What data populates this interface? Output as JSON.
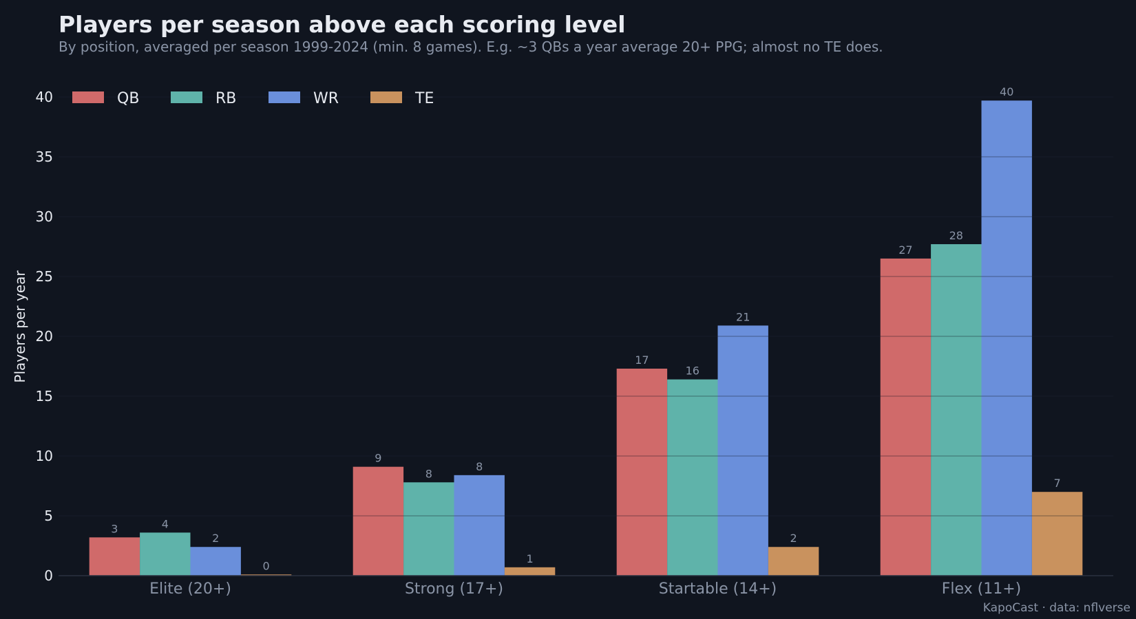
{
  "chart_data": {
    "type": "bar",
    "title": "Players per season above each scoring level",
    "subtitle": "By position, averaged per season 1999-2024 (min. 8 games). E.g. ~3 QBs a year average 20+ PPG; almost no TE does.",
    "xlabel": "",
    "ylabel": "Players per year",
    "ylim": [
      0,
      40
    ],
    "yticks": [
      "0",
      "5",
      "10",
      "15",
      "20",
      "25",
      "30",
      "35",
      "40"
    ],
    "grid": true,
    "legend_position": "top-left",
    "categories": [
      "Elite (20+)",
      "Strong (17+)",
      "Startable (14+)",
      "Flex (11+)"
    ],
    "series": [
      {
        "name": "QB",
        "color": "#d06a6a",
        "values": [
          3.2,
          9.1,
          17.3,
          26.5
        ],
        "labels": [
          "3",
          "9",
          "17",
          "27"
        ]
      },
      {
        "name": "RB",
        "color": "#5fb3aa",
        "values": [
          3.6,
          7.8,
          16.4,
          27.7
        ],
        "labels": [
          "4",
          "8",
          "16",
          "28"
        ]
      },
      {
        "name": "WR",
        "color": "#6a8fdb",
        "values": [
          2.4,
          8.4,
          20.9,
          39.7
        ],
        "labels": [
          "2",
          "8",
          "21",
          "40"
        ]
      },
      {
        "name": "TE",
        "color": "#c9925e",
        "values": [
          0.1,
          0.7,
          2.4,
          7.0
        ],
        "labels": [
          "0",
          "1",
          "2",
          "7"
        ]
      }
    ]
  },
  "credit": "KapoCast · data: nflverse"
}
